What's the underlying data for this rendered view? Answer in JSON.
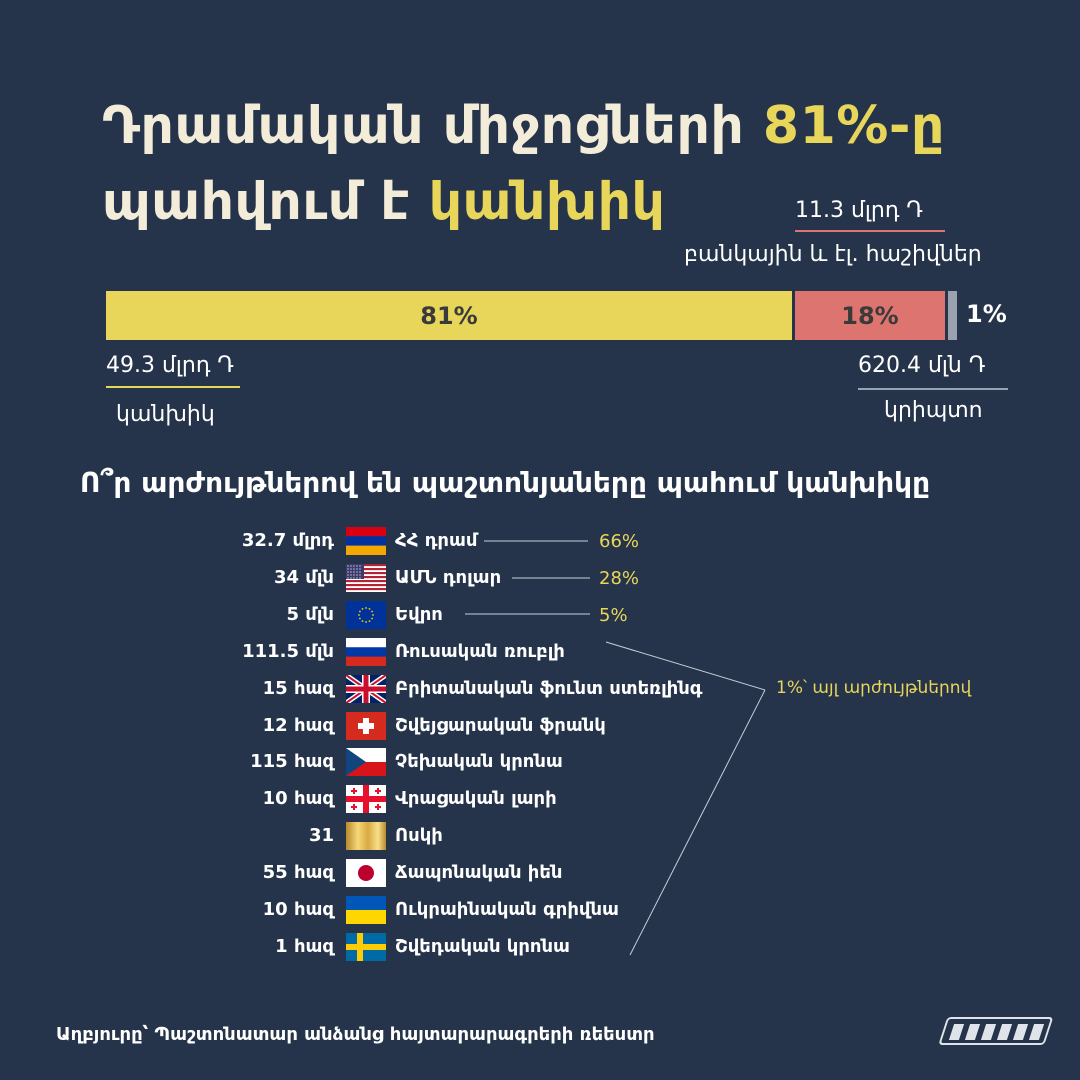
{
  "title": {
    "part1": "Դրամական միջոցների",
    "highlight1": "81%-ը",
    "part2": "պահվում է",
    "highlight2": "կանխիկ"
  },
  "colors": {
    "background": "#25344a",
    "cash": "#e8d65b",
    "bank": "#dd7470",
    "crypto": "#9aa2b2",
    "highlight": "#e8d65b"
  },
  "top_annotations": {
    "bank_amount": "11.3 մլրդ Դ",
    "bank_label": "բանկային և էլ. հաշիվներ",
    "cash_amount": "49.3 մլրդ Դ",
    "cash_label": "կանխիկ",
    "crypto_amount": "620.4 մլն Դ",
    "crypto_label": "կրիպտո"
  },
  "subtitle": "Ո՞ր արժույթներով են պաշտոնյաները պահում կանխիկը",
  "other_label": "1%՝ այլ արժույթներով",
  "source": "Աղբյուրը՝ Պաշտոնատար անձանց հայտարարագրերի ռեեստր",
  "chart_data": [
    {
      "type": "bar",
      "stacked": true,
      "categories": [
        "կանխիկ",
        "բանկային և էլ. հաշիվներ",
        "կրիպտո"
      ],
      "values": [
        81,
        18,
        1
      ],
      "labels": [
        "81%",
        "18%",
        "1%"
      ],
      "amounts": [
        "49.3 մլրդ Դ",
        "11.3 մլրդ Դ",
        "620.4 մլն Դ"
      ],
      "colors": [
        "#e8d65b",
        "#dd7470",
        "#9aa2b2"
      ]
    },
    {
      "type": "table",
      "rows": [
        {
          "amount": "32.7 մլրդ",
          "currency": "ՀՀ դրամ",
          "flag": "armenia-flag-icon",
          "share": "66%"
        },
        {
          "amount": "34 մլն",
          "currency": "ԱՄՆ դոլար",
          "flag": "usa-flag-icon",
          "share": "28%"
        },
        {
          "amount": "5 մլն",
          "currency": "Եվրո",
          "flag": "eu-flag-icon",
          "share": "5%"
        },
        {
          "amount": "111.5 մլն",
          "currency": "Ռուսական ռուբլի",
          "flag": "russia-flag-icon"
        },
        {
          "amount": "15 հազ",
          "currency": "Բրիտանական ֆունտ ստեռլինգ",
          "flag": "uk-flag-icon"
        },
        {
          "amount": "12 հազ",
          "currency": "Շվեյցարական ֆրանկ",
          "flag": "switzerland-flag-icon"
        },
        {
          "amount": "115 հազ",
          "currency": "Չեխական կրոնա",
          "flag": "czech-flag-icon"
        },
        {
          "amount": "10 հազ",
          "currency": "Վրացական լարի",
          "flag": "georgia-flag-icon"
        },
        {
          "amount": "31",
          "currency": "Ոսկի",
          "flag": "gold-bar-icon"
        },
        {
          "amount": "55 հազ",
          "currency": "Ճապոնական իեն",
          "flag": "japan-flag-icon"
        },
        {
          "amount": "10 հազ",
          "currency": "Ուկրաինական գրիվնա",
          "flag": "ukraine-flag-icon"
        },
        {
          "amount": "1 հազ",
          "currency": "Շվեդական կրոնա",
          "flag": "sweden-flag-icon"
        }
      ]
    }
  ]
}
